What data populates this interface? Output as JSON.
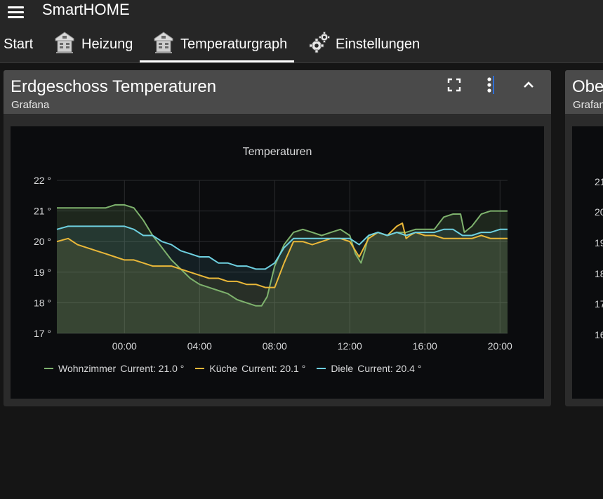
{
  "app": {
    "title": "SmartHOME"
  },
  "tabs": [
    {
      "label": "Start",
      "icon": ""
    },
    {
      "label": "Heizung",
      "icon": "house-icon"
    },
    {
      "label": "Temperaturgraph",
      "icon": "house-icon"
    },
    {
      "label": "Einstellungen",
      "icon": "gears-icon"
    }
  ],
  "active_tab": "Temperaturgraph",
  "colors": {
    "wohnzimmer": "#7eb26d",
    "kueche": "#eab839",
    "diele": "#6ed0e0",
    "bg": "#151515",
    "bar": "#262626"
  },
  "card1": {
    "title": "Erdgeschoss Temperaturen",
    "subtitle": "Grafana",
    "panel_title": "Temperaturen",
    "legend": [
      {
        "name": "Wohnzimmer",
        "current": "Current: 21.0 °"
      },
      {
        "name": "Küche",
        "current": "Current: 20.1 °"
      },
      {
        "name": "Diele",
        "current": "Current: 20.4 °"
      }
    ]
  },
  "card2": {
    "title": "Obe",
    "subtitle": "Grafan",
    "y_ticks": [
      "21",
      "20",
      "19",
      "18",
      "17",
      "16"
    ]
  },
  "chart_data": {
    "type": "line",
    "title": "Temperaturen",
    "xlabel": "",
    "ylabel": "",
    "x_ticks": [
      "00:00",
      "04:00",
      "08:00",
      "12:00",
      "16:00",
      "20:00"
    ],
    "y_ticks": [
      "22 °",
      "21 °",
      "20 °",
      "19 °",
      "18 °",
      "17 °"
    ],
    "x_unit": "hours relative to 00:00",
    "xlim": [
      -3.6,
      20.4
    ],
    "ylim": [
      17,
      22
    ],
    "grid": true,
    "legend_position": "bottom",
    "series": [
      {
        "name": "Wohnzimmer",
        "color": "#7eb26d",
        "current": 21.0,
        "x": [
          -3.6,
          -1.0,
          -0.5,
          0,
          0.5,
          1,
          1.5,
          2,
          2.5,
          3,
          3.5,
          4,
          4.5,
          5,
          5.5,
          6,
          6.5,
          7,
          7.3,
          7.6,
          8,
          8.5,
          9,
          9.5,
          10,
          10.5,
          11,
          11.5,
          12,
          12.3,
          12.6,
          12.8,
          13,
          13.5,
          14,
          14.5,
          15,
          15.5,
          16,
          16.5,
          17,
          17.5,
          17.9,
          18.1,
          18.5,
          19,
          19.5,
          20,
          20.4
        ],
        "y": [
          21.1,
          21.1,
          21.2,
          21.2,
          21.1,
          20.7,
          20.2,
          19.8,
          19.4,
          19.1,
          18.8,
          18.6,
          18.5,
          18.4,
          18.3,
          18.1,
          18.0,
          17.9,
          17.9,
          18.2,
          19.2,
          19.9,
          20.3,
          20.4,
          20.3,
          20.2,
          20.3,
          20.4,
          20.2,
          19.6,
          19.3,
          19.7,
          20.2,
          20.3,
          20.2,
          20.3,
          20.3,
          20.4,
          20.4,
          20.4,
          20.8,
          20.9,
          20.9,
          20.3,
          20.5,
          20.9,
          21.0,
          21.0,
          21.0
        ]
      },
      {
        "name": "Küche",
        "color": "#eab839",
        "current": 20.1,
        "x": [
          -3.6,
          -3.0,
          -2.5,
          -2.0,
          -1.5,
          -1.0,
          -0.5,
          0,
          0.5,
          1,
          1.5,
          2,
          2.5,
          3,
          3.5,
          4,
          4.5,
          5,
          5.5,
          6,
          6.5,
          7,
          7.5,
          8,
          8.5,
          9,
          9.5,
          10,
          10.5,
          11,
          11.5,
          12,
          12.5,
          13,
          13.5,
          14,
          14.5,
          14.8,
          15,
          15.2,
          15.5,
          16,
          16.5,
          17,
          17.5,
          18,
          18.5,
          19,
          19.5,
          20,
          20.4
        ],
        "y": [
          20.0,
          20.1,
          19.9,
          19.8,
          19.7,
          19.6,
          19.5,
          19.4,
          19.4,
          19.3,
          19.2,
          19.2,
          19.2,
          19.1,
          19.0,
          18.9,
          18.8,
          18.8,
          18.7,
          18.7,
          18.6,
          18.6,
          18.5,
          18.5,
          19.3,
          20.0,
          20.0,
          19.9,
          20.0,
          20.1,
          20.1,
          20.0,
          19.5,
          20.1,
          20.3,
          20.2,
          20.5,
          20.6,
          20.1,
          20.2,
          20.3,
          20.2,
          20.2,
          20.1,
          20.1,
          20.1,
          20.1,
          20.2,
          20.1,
          20.1,
          20.1
        ]
      },
      {
        "name": "Diele",
        "color": "#6ed0e0",
        "current": 20.4,
        "x": [
          -3.6,
          -3.0,
          -2.5,
          -2.0,
          -1.5,
          -1.0,
          -0.5,
          0,
          0.5,
          1,
          1.5,
          2,
          2.5,
          3,
          3.5,
          4,
          4.5,
          5,
          5.5,
          6,
          6.5,
          7,
          7.5,
          8,
          8.5,
          9,
          9.5,
          10,
          10.5,
          11,
          11.5,
          12,
          12.5,
          13,
          13.5,
          14,
          14.5,
          15,
          15.5,
          16,
          16.5,
          17,
          17.5,
          18,
          18.5,
          19,
          19.5,
          20,
          20.4
        ],
        "y": [
          20.4,
          20.5,
          20.5,
          20.5,
          20.5,
          20.5,
          20.5,
          20.5,
          20.4,
          20.2,
          20.2,
          20.0,
          19.9,
          19.7,
          19.6,
          19.5,
          19.5,
          19.3,
          19.3,
          19.2,
          19.2,
          19.1,
          19.1,
          19.3,
          19.8,
          20.1,
          20.1,
          20.1,
          20.1,
          20.1,
          20.1,
          20.1,
          19.9,
          20.2,
          20.3,
          20.2,
          20.3,
          20.2,
          20.3,
          20.3,
          20.3,
          20.4,
          20.4,
          20.2,
          20.2,
          20.3,
          20.3,
          20.4,
          20.4
        ]
      }
    ]
  }
}
